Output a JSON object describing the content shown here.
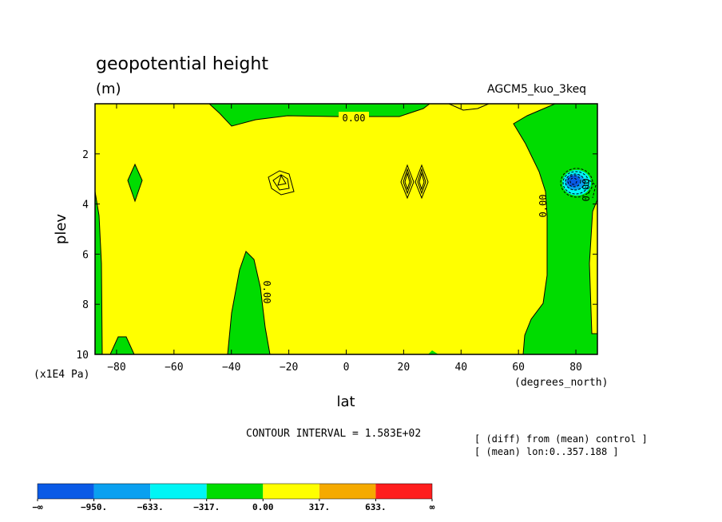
{
  "header": {
    "title": "geopotential height",
    "units": "(m)",
    "run_name": "AGCM5_kuo_3keq"
  },
  "chart_data": {
    "type": "contour",
    "title": "geopotential height",
    "subtitle": "(m)",
    "xlabel": "lat",
    "ylabel": "plev",
    "x_units": "(degrees_north)",
    "y_units": "(x1E4 Pa)",
    "x_ticks": [
      -80,
      -60,
      -40,
      -20,
      0,
      20,
      40,
      60,
      80
    ],
    "x_tick_labels": [
      "−80",
      "−60",
      "−40",
      "−20",
      "0",
      "20",
      "40",
      "60",
      "80"
    ],
    "y_ticks": [
      2,
      4,
      6,
      8,
      10
    ],
    "xlim": [
      -87.5,
      87.5
    ],
    "ylim": [
      0,
      10
    ],
    "y_inverted": true,
    "contour_interval": "CONTOUR INTERVAL = 1.583E+02",
    "contour_labels": [
      "0.00",
      "0.00",
      "0.00",
      "0.00"
    ],
    "level_labels": [
      "−∞",
      "−950.",
      "−633.",
      "−317.",
      "0.00",
      "317.",
      "633.",
      "∞"
    ],
    "level_values": [
      -950,
      -633,
      -317,
      0,
      317,
      633
    ],
    "colorbar": [
      {
        "color": "#0a5ae6"
      },
      {
        "color": "#0aa0f0"
      },
      {
        "color": "#00f5f5"
      },
      {
        "color": "#00dc00"
      },
      {
        "color": "#ffff00"
      },
      {
        "color": "#f5aa00"
      },
      {
        "color": "#ff1e1e"
      }
    ],
    "notes": [
      "[ (diff) from (mean) control ]",
      "[ (mean) lon:0..357.188 ]"
    ]
  }
}
